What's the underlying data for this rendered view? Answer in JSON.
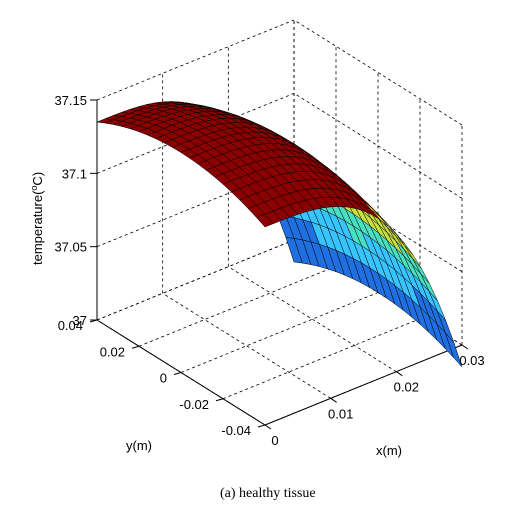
{
  "caption": "(a) healthy tissue",
  "chart_data": {
    "type": "surface",
    "title": "",
    "xlabel": "x(m)",
    "ylabel": "y(m)",
    "zlabel": "temperature( ºC)",
    "zlabel_main": "temperature(",
    "zlabel_sup": "o",
    "zlabel_tail": "C)",
    "xlim": [
      0,
      0.03
    ],
    "ylim": [
      -0.04,
      0.04
    ],
    "zlim": [
      37,
      37.15
    ],
    "x_ticks": [
      "0",
      "0.01",
      "0.02",
      "0.03"
    ],
    "y_ticks": [
      "-0.04",
      "-0.02",
      "0",
      "0.02",
      "0.04"
    ],
    "z_ticks": [
      "37",
      "37.05",
      "37.1",
      "37.15"
    ],
    "grid": true,
    "colormap": [
      "#1f6fe0",
      "#38c4ff",
      "#48e0c0",
      "#c8e040",
      "#f0e040",
      "#8b0000"
    ],
    "surface": {
      "x_domain": [
        0,
        0.03
      ],
      "y_domain": [
        -0.04,
        0.04
      ],
      "z_at_x0": 37.15,
      "z_at_x_end": 37.0,
      "y_edge_drop": 0.015,
      "approx_z_at_x": [
        {
          "x": 0.0,
          "z": 37.15
        },
        {
          "x": 0.01,
          "z": 37.14
        },
        {
          "x": 0.02,
          "z": 37.105
        },
        {
          "x": 0.025,
          "z": 37.07
        },
        {
          "x": 0.03,
          "z": 37.0
        }
      ]
    }
  }
}
